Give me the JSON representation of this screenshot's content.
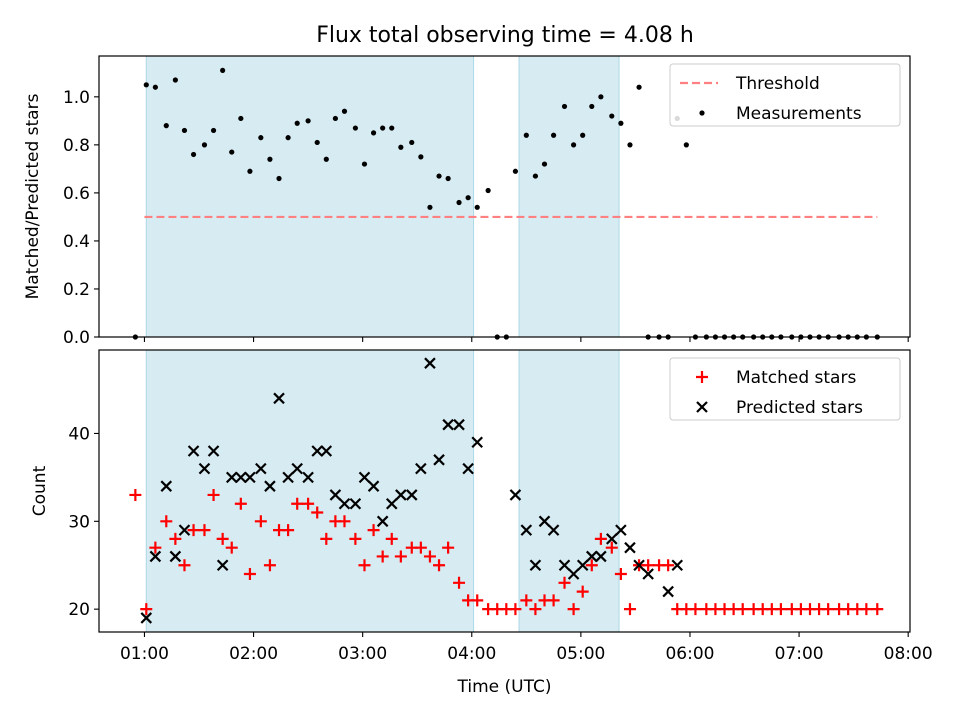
{
  "chart_data": [
    {
      "type": "scatter",
      "title": "Flux total observing time = 4.08 h",
      "xlabel": "",
      "ylabel": "Matched/Predicted stars",
      "xlim": [
        "00:35",
        "08:01"
      ],
      "ylim": [
        0,
        1.17
      ],
      "yticks": [
        0,
        0.2,
        0.4,
        0.6,
        0.8,
        1.0
      ],
      "ytick_labels": [
        "0.0",
        "0.2",
        "0.4",
        "0.6",
        "0.8",
        "1.0"
      ],
      "xticks": [
        "01:00",
        "02:00",
        "03:00",
        "04:00",
        "05:00",
        "06:00",
        "07:00",
        "08:00"
      ],
      "x_tick_labels_shown": false,
      "grid": false,
      "legend": "top-right",
      "observing_windows": [
        [
          "01:01",
          "04:01"
        ],
        [
          "04:26",
          "05:21"
        ]
      ],
      "window_color": "#add8e6",
      "series": [
        {
          "name": "Threshold",
          "kind": "dashed-line",
          "color": "#ff8080",
          "x": [
            "01:00",
            "07:43"
          ],
          "y": [
            0.5,
            0.5
          ]
        },
        {
          "name": "Measurements",
          "kind": "points",
          "color": "#000000",
          "x": [
            "00:55",
            "01:01",
            "01:06",
            "01:12",
            "01:17",
            "01:22",
            "01:27",
            "01:33",
            "01:38",
            "01:43",
            "01:48",
            "01:53",
            "01:58",
            "02:04",
            "02:09",
            "02:14",
            "02:19",
            "02:24",
            "02:30",
            "02:35",
            "02:40",
            "02:45",
            "02:50",
            "02:56",
            "03:01",
            "03:06",
            "03:11",
            "03:16",
            "03:21",
            "03:27",
            "03:32",
            "03:37",
            "03:42",
            "03:47",
            "03:53",
            "03:58",
            "04:03",
            "04:09",
            "04:14",
            "04:19",
            "04:24",
            "04:30",
            "04:35",
            "04:40",
            "04:45",
            "04:51",
            "04:56",
            "05:01",
            "05:06",
            "05:11",
            "05:17",
            "05:22",
            "05:27",
            "05:32",
            "05:37",
            "05:43",
            "05:48",
            "05:53",
            "05:58",
            "06:03",
            "06:09",
            "06:14",
            "06:19",
            "06:24",
            "06:29",
            "06:35",
            "06:40",
            "06:45",
            "06:50",
            "06:56",
            "07:01",
            "07:06",
            "07:11",
            "07:16",
            "07:22",
            "07:27",
            "07:32",
            "07:37",
            "07:43"
          ],
          "y": [
            0.0,
            1.05,
            1.04,
            0.88,
            1.07,
            0.86,
            0.76,
            0.8,
            0.86,
            1.11,
            0.77,
            0.91,
            0.69,
            0.83,
            0.74,
            0.66,
            0.83,
            0.89,
            0.9,
            0.81,
            0.74,
            0.91,
            0.94,
            0.87,
            0.72,
            0.85,
            0.87,
            0.87,
            0.79,
            0.81,
            0.75,
            0.54,
            0.67,
            0.66,
            0.56,
            0.58,
            0.54,
            0.61,
            0.0,
            0.0,
            0.69,
            0.84,
            0.67,
            0.72,
            0.84,
            0.96,
            0.8,
            0.84,
            0.96,
            1.0,
            0.92,
            0.89,
            0.8,
            1.04,
            0.0,
            0.0,
            0.0,
            0.91,
            0.8,
            0.0,
            0.0,
            0.0,
            0.0,
            0.0,
            0.0,
            0.0,
            0.0,
            0.0,
            0.0,
            0.0,
            0.0,
            0.0,
            0.0,
            0.0,
            0.0,
            0.0,
            0.0,
            0.0,
            0.0
          ]
        }
      ]
    },
    {
      "type": "scatter",
      "title": "",
      "xlabel": "Time (UTC)",
      "ylabel": "Count",
      "xlim": [
        "00:35",
        "08:01"
      ],
      "ylim": [
        17.4,
        49.5
      ],
      "yticks": [
        20,
        30,
        40
      ],
      "ytick_labels": [
        "20",
        "30",
        "40"
      ],
      "xticks": [
        "01:00",
        "02:00",
        "03:00",
        "04:00",
        "05:00",
        "06:00",
        "07:00",
        "08:00"
      ],
      "xtick_labels": [
        "01:00",
        "02:00",
        "03:00",
        "04:00",
        "05:00",
        "06:00",
        "07:00",
        "08:00"
      ],
      "grid": false,
      "legend": "top-right",
      "observing_windows": [
        [
          "01:01",
          "04:01"
        ],
        [
          "04:26",
          "05:21"
        ]
      ],
      "window_color": "#add8e6",
      "series": [
        {
          "name": "Matched stars",
          "marker": "+",
          "color": "#ff0000",
          "x": [
            "00:55",
            "01:01",
            "01:06",
            "01:12",
            "01:17",
            "01:22",
            "01:27",
            "01:33",
            "01:38",
            "01:43",
            "01:48",
            "01:53",
            "01:58",
            "02:04",
            "02:09",
            "02:14",
            "02:19",
            "02:24",
            "02:30",
            "02:35",
            "02:40",
            "02:45",
            "02:50",
            "02:56",
            "03:01",
            "03:06",
            "03:11",
            "03:16",
            "03:21",
            "03:27",
            "03:32",
            "03:37",
            "03:42",
            "03:47",
            "03:53",
            "03:58",
            "04:03",
            "04:09",
            "04:14",
            "04:19",
            "04:24",
            "04:30",
            "04:35",
            "04:40",
            "04:45",
            "04:51",
            "04:56",
            "05:01",
            "05:06",
            "05:11",
            "05:17",
            "05:22",
            "05:27",
            "05:32",
            "05:37",
            "05:43",
            "05:48",
            "05:53",
            "05:58",
            "06:03",
            "06:09",
            "06:14",
            "06:19",
            "06:24",
            "06:29",
            "06:35",
            "06:40",
            "06:45",
            "06:50",
            "06:56",
            "07:01",
            "07:06",
            "07:11",
            "07:16",
            "07:22",
            "07:27",
            "07:32",
            "07:37",
            "07:43"
          ],
          "y": [
            33,
            20,
            27,
            30,
            28,
            25,
            29,
            29,
            33,
            28,
            27,
            32,
            24,
            30,
            25,
            29,
            29,
            32,
            32,
            31,
            28,
            30,
            30,
            28,
            25,
            29,
            26,
            28,
            26,
            27,
            27,
            26,
            25,
            27,
            23,
            21,
            21,
            20,
            20,
            20,
            20,
            21,
            20,
            21,
            21,
            23,
            20,
            22,
            25,
            28,
            27,
            24,
            20,
            25,
            25,
            25,
            25,
            20,
            20,
            20,
            20,
            20,
            20,
            20,
            20,
            20,
            20,
            20,
            20,
            20,
            20,
            20,
            20,
            20,
            20,
            20,
            20,
            20,
            20
          ]
        },
        {
          "name": "Predicted stars",
          "marker": "x",
          "color": "#000000",
          "x": [
            "01:01",
            "01:06",
            "01:12",
            "01:17",
            "01:22",
            "01:27",
            "01:33",
            "01:38",
            "01:43",
            "01:48",
            "01:53",
            "01:58",
            "02:04",
            "02:09",
            "02:14",
            "02:19",
            "02:24",
            "02:30",
            "02:35",
            "02:40",
            "02:45",
            "02:50",
            "02:56",
            "03:01",
            "03:06",
            "03:11",
            "03:16",
            "03:21",
            "03:27",
            "03:32",
            "03:37",
            "03:42",
            "03:47",
            "03:53",
            "03:58",
            "04:03",
            "04:24",
            "04:30",
            "04:35",
            "04:40",
            "04:45",
            "04:51",
            "04:56",
            "05:01",
            "05:06",
            "05:11",
            "05:17",
            "05:22",
            "05:27",
            "05:32",
            "05:37",
            "05:48",
            "05:53"
          ],
          "y": [
            19,
            26,
            34,
            26,
            29,
            38,
            36,
            38,
            25,
            35,
            35,
            35,
            36,
            34,
            44,
            35,
            36,
            35,
            38,
            38,
            33,
            32,
            32,
            35,
            34,
            30,
            32,
            33,
            33,
            36,
            48,
            37,
            41,
            41,
            36,
            39,
            33,
            29,
            25,
            30,
            29,
            25,
            24,
            25,
            26,
            26,
            28,
            29,
            27,
            25,
            24,
            22,
            25
          ]
        }
      ]
    }
  ]
}
